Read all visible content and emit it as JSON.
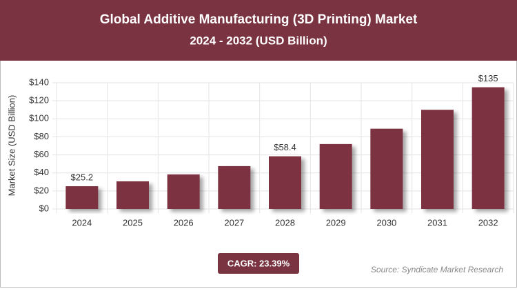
{
  "chart_data": {
    "type": "bar",
    "title": "Global Additive Manufacturing (3D Printing) Market",
    "subtitle": "2024 - 2032 (USD Billion)",
    "y_label": "Market Size (USD Billion)",
    "categories": [
      "2024",
      "2025",
      "2026",
      "2027",
      "2028",
      "2029",
      "2030",
      "2031",
      "2032"
    ],
    "values": [
      25.2,
      30.6,
      38.3,
      47.5,
      58.4,
      72,
      89,
      110,
      135
    ],
    "value_labels": [
      "$25.2",
      null,
      null,
      null,
      "$58.4",
      null,
      null,
      null,
      "$135"
    ],
    "color": "#7b3241",
    "ylim": [
      0,
      140
    ],
    "yticks": [
      {
        "value": 0,
        "label": "$0"
      },
      {
        "value": 20,
        "label": "$20"
      },
      {
        "value": 40,
        "label": "$40"
      },
      {
        "value": 60,
        "label": "$60"
      },
      {
        "value": 80,
        "label": "$80"
      },
      {
        "value": 100,
        "label": "$100"
      },
      {
        "value": 120,
        "label": "$120"
      },
      {
        "value": 140,
        "label": "$140"
      }
    ],
    "grid": true,
    "cagr": "CAGR: 23.39%",
    "source": "Source: Syndicate Market Research"
  }
}
